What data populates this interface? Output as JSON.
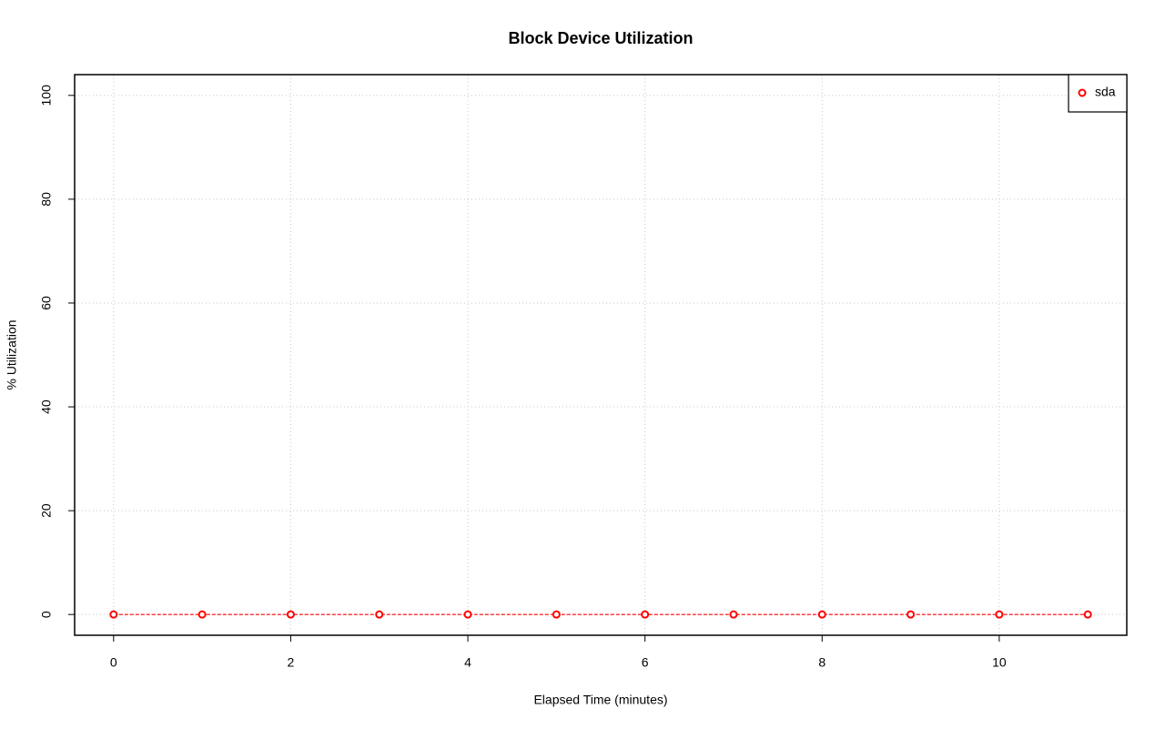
{
  "chart_data": {
    "type": "line",
    "title": "Block Device Utilization",
    "x_label": "Elapsed Time (minutes)",
    "y_label": "% Utilization",
    "x": [
      0,
      1,
      2,
      3,
      4,
      5,
      6,
      7,
      8,
      9,
      10,
      11
    ],
    "series": [
      {
        "name": "sda",
        "color": "#ff0000",
        "values": [
          0,
          0,
          0,
          0,
          0,
          0,
          0,
          0,
          0,
          0,
          0,
          0
        ]
      }
    ],
    "xlim": [
      -0.44,
      11.44
    ],
    "xticks": [
      0,
      2,
      4,
      6,
      8,
      10
    ],
    "ylim": [
      -4,
      104
    ],
    "yticks": [
      0,
      20,
      40,
      60,
      80,
      100
    ],
    "grid": true,
    "legend_position": "topright"
  }
}
